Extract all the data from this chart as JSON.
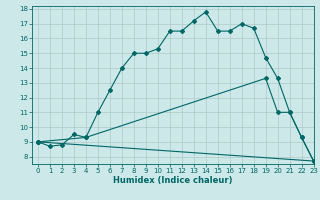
{
  "xlabel": "Humidex (Indice chaleur)",
  "background_color": "#cce8e8",
  "line_color": "#006666",
  "grid_color": "#b0c8c8",
  "xlim": [
    -0.5,
    23
  ],
  "ylim": [
    7.5,
    18.2
  ],
  "yticks": [
    8,
    9,
    10,
    11,
    12,
    13,
    14,
    15,
    16,
    17,
    18
  ],
  "xticks": [
    0,
    1,
    2,
    3,
    4,
    5,
    6,
    7,
    8,
    9,
    10,
    11,
    12,
    13,
    14,
    15,
    16,
    17,
    18,
    19,
    20,
    21,
    22,
    23
  ],
  "line1_x": [
    0,
    1,
    2,
    3,
    4,
    5,
    6,
    7,
    8,
    9,
    10,
    11,
    12,
    13,
    14,
    15,
    16,
    17,
    18,
    19,
    20,
    21,
    22,
    23
  ],
  "line1_y": [
    9.0,
    8.7,
    8.8,
    9.5,
    9.3,
    11.0,
    12.5,
    14.0,
    15.0,
    15.0,
    15.3,
    16.5,
    16.5,
    17.2,
    17.8,
    16.5,
    16.5,
    17.0,
    16.7,
    14.7,
    13.3,
    11.0,
    9.3,
    7.7
  ],
  "line2_x": [
    0,
    4,
    19,
    20,
    21,
    22,
    23
  ],
  "line2_y": [
    9.0,
    9.3,
    13.3,
    11.0,
    11.0,
    9.3,
    7.7
  ],
  "line3_x": [
    0,
    23
  ],
  "line3_y": [
    9.0,
    7.7
  ],
  "xlabel_fontsize": 6.0,
  "tick_fontsize": 5.0
}
